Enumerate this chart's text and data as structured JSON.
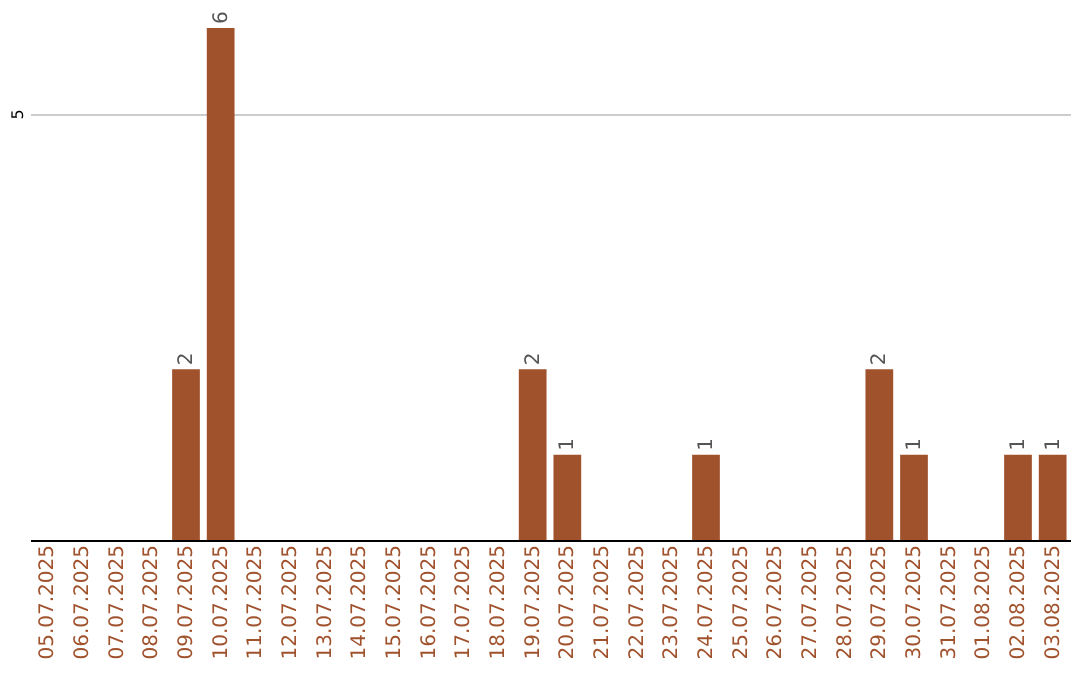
{
  "chart_data": {
    "type": "bar",
    "categories": [
      "05.07.2025",
      "06.07.2025",
      "07.07.2025",
      "08.07.2025",
      "09.07.2025",
      "10.07.2025",
      "11.07.2025",
      "12.07.2025",
      "13.07.2025",
      "14.07.2025",
      "15.07.2025",
      "16.07.2025",
      "17.07.2025",
      "18.07.2025",
      "19.07.2025",
      "20.07.2025",
      "21.07.2025",
      "22.07.2025",
      "23.07.2025",
      "24.07.2025",
      "25.07.2025",
      "26.07.2025",
      "27.07.2025",
      "28.07.2025",
      "29.07.2025",
      "30.07.2025",
      "31.07.2025",
      "01.08.2025",
      "02.08.2025",
      "03.08.2025"
    ],
    "values": [
      0,
      0,
      0,
      0,
      2,
      6,
      0,
      0,
      0,
      0,
      0,
      0,
      0,
      0,
      2,
      1,
      0,
      0,
      0,
      1,
      0,
      0,
      0,
      0,
      2,
      1,
      0,
      0,
      1,
      1
    ],
    "value_labels": [
      null,
      null,
      null,
      null,
      "2",
      "6",
      null,
      null,
      null,
      null,
      null,
      null,
      null,
      null,
      "2",
      "1",
      null,
      null,
      null,
      "1",
      null,
      null,
      null,
      null,
      "2",
      "1",
      null,
      null,
      "1",
      "1"
    ],
    "color": "#a0522d",
    "ylim": [
      0,
      6
    ],
    "yticks": [
      5
    ],
    "grid": "y"
  }
}
